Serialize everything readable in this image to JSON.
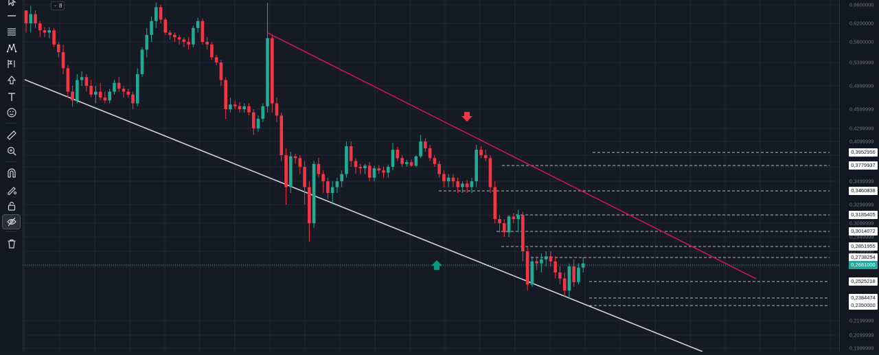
{
  "toolbar": {
    "tools": [
      {
        "name": "cursor-icon"
      },
      {
        "name": "trend-line-icon"
      },
      {
        "name": "fib-retracement-icon"
      },
      {
        "name": "pattern-icon"
      },
      {
        "name": "prediction-icon"
      },
      {
        "name": "shapes-icon"
      },
      {
        "name": "text-icon"
      },
      {
        "name": "emoji-icon"
      },
      {
        "name": "ruler-icon"
      },
      {
        "name": "zoom-in-icon"
      },
      {
        "name": "magnet-icon"
      },
      {
        "name": "stay-in-drawing-mode-icon"
      },
      {
        "name": "lock-icon"
      },
      {
        "name": "hide-drawings-icon"
      },
      {
        "name": "trash-icon"
      }
    ]
  },
  "interval": {
    "value": "8"
  },
  "colors": {
    "background": "#161a25",
    "grid": "#232734",
    "bull": "#22ab94",
    "bear": "#f23645",
    "channel_upper": "#c2185b",
    "channel_lower": "#d1d4dc",
    "level_line": "#b2b5be",
    "current_price": "#26a69a",
    "arrow_down": "#f23645",
    "arrow_up": "#089981"
  },
  "chart_data": {
    "type": "candlestick",
    "price_axis_ticks": [
      "0,6600000",
      "0,6200000",
      "0,5800000",
      "0,5399999",
      "0,4999999",
      "0,4599999",
      "0,4299999",
      "0,4099999",
      "0,3899999",
      "0,3699999",
      "0,3499999",
      "0,3299999",
      "0,3199999",
      "0,3099999",
      "0,2949999",
      "0,2799999",
      "0,2649999",
      "0,2199999",
      "0,2099999",
      "0,1999999"
    ],
    "levels": [
      {
        "label": "0,3952956",
        "price": 0.3953
      },
      {
        "label": "0,3779937",
        "price": 0.378
      },
      {
        "label": "0,3460838",
        "price": 0.3461
      },
      {
        "label": "0,3185405",
        "price": 0.3185
      },
      {
        "label": "0,3014072",
        "price": 0.3014
      },
      {
        "label": "0,2851955",
        "price": 0.2852
      },
      {
        "label": "0,2738254",
        "price": 0.2738
      },
      {
        "label": "0,2525218",
        "price": 0.2525
      },
      {
        "label": "0,2384474",
        "price": 0.2384
      },
      {
        "label": "0,2350000",
        "price": 0.235
      }
    ],
    "current_price": {
      "label": "0,2681000",
      "price": 0.2681
    },
    "candles": [
      [
        0.648,
        0.648,
        0.6,
        0.62
      ],
      [
        0.62,
        0.658,
        0.6,
        0.64
      ],
      [
        0.64,
        0.648,
        0.61,
        0.62
      ],
      [
        0.62,
        0.625,
        0.59,
        0.605
      ],
      [
        0.605,
        0.612,
        0.59,
        0.6
      ],
      [
        0.6,
        0.612,
        0.588,
        0.605
      ],
      [
        0.605,
        0.61,
        0.57,
        0.575
      ],
      [
        0.575,
        0.58,
        0.55,
        0.56
      ],
      [
        0.56,
        0.575,
        0.52,
        0.53
      ],
      [
        0.53,
        0.535,
        0.48,
        0.49
      ],
      [
        0.49,
        0.5,
        0.465,
        0.475
      ],
      [
        0.475,
        0.52,
        0.47,
        0.51
      ],
      [
        0.51,
        0.525,
        0.5,
        0.515
      ],
      [
        0.515,
        0.52,
        0.49,
        0.5
      ],
      [
        0.5,
        0.51,
        0.48,
        0.485
      ],
      [
        0.485,
        0.5,
        0.47,
        0.49
      ],
      [
        0.49,
        0.505,
        0.475,
        0.48
      ],
      [
        0.48,
        0.49,
        0.47,
        0.475
      ],
      [
        0.475,
        0.495,
        0.47,
        0.49
      ],
      [
        0.49,
        0.51,
        0.485,
        0.505
      ],
      [
        0.505,
        0.515,
        0.49,
        0.495
      ],
      [
        0.495,
        0.5,
        0.48,
        0.49
      ],
      [
        0.49,
        0.495,
        0.48,
        0.485
      ],
      [
        0.485,
        0.49,
        0.46,
        0.47
      ],
      [
        0.47,
        0.53,
        0.465,
        0.52
      ],
      [
        0.52,
        0.57,
        0.515,
        0.565
      ],
      [
        0.565,
        0.61,
        0.55,
        0.595
      ],
      [
        0.595,
        0.635,
        0.58,
        0.625
      ],
      [
        0.625,
        0.665,
        0.61,
        0.655
      ],
      [
        0.655,
        0.66,
        0.62,
        0.628
      ],
      [
        0.628,
        0.632,
        0.595,
        0.6
      ],
      [
        0.6,
        0.605,
        0.585,
        0.595
      ],
      [
        0.595,
        0.6,
        0.58,
        0.59
      ],
      [
        0.59,
        0.595,
        0.575,
        0.585
      ],
      [
        0.585,
        0.59,
        0.57,
        0.58
      ],
      [
        0.58,
        0.59,
        0.565,
        0.575
      ],
      [
        0.575,
        0.615,
        0.57,
        0.61
      ],
      [
        0.61,
        0.632,
        0.6,
        0.625
      ],
      [
        0.625,
        0.63,
        0.575,
        0.58
      ],
      [
        0.58,
        0.59,
        0.565,
        0.575
      ],
      [
        0.575,
        0.58,
        0.545,
        0.55
      ],
      [
        0.55,
        0.555,
        0.535,
        0.54
      ],
      [
        0.54,
        0.545,
        0.5,
        0.51
      ],
      [
        0.51,
        0.515,
        0.445,
        0.46
      ],
      [
        0.46,
        0.48,
        0.455,
        0.468
      ],
      [
        0.468,
        0.475,
        0.46,
        0.465
      ],
      [
        0.465,
        0.472,
        0.455,
        0.46
      ],
      [
        0.46,
        0.47,
        0.455,
        0.465
      ],
      [
        0.465,
        0.47,
        0.45,
        0.455
      ],
      [
        0.455,
        0.46,
        0.42,
        0.43
      ],
      [
        0.43,
        0.45,
        0.425,
        0.445
      ],
      [
        0.445,
        0.47,
        0.44,
        0.465
      ],
      [
        0.465,
        0.664,
        0.455,
        0.588
      ],
      [
        0.588,
        0.595,
        0.455,
        0.47
      ],
      [
        0.47,
        0.48,
        0.44,
        0.45
      ],
      [
        0.45,
        0.455,
        0.38,
        0.39
      ],
      [
        0.39,
        0.4,
        0.33,
        0.345
      ],
      [
        0.345,
        0.395,
        0.34,
        0.388
      ],
      [
        0.388,
        0.392,
        0.375,
        0.385
      ],
      [
        0.385,
        0.39,
        0.36,
        0.37
      ],
      [
        0.37,
        0.38,
        0.33,
        0.345
      ],
      [
        0.345,
        0.35,
        0.29,
        0.31
      ],
      [
        0.31,
        0.38,
        0.305,
        0.375
      ],
      [
        0.375,
        0.385,
        0.355,
        0.36
      ],
      [
        0.36,
        0.365,
        0.34,
        0.35
      ],
      [
        0.35,
        0.355,
        0.335,
        0.34
      ],
      [
        0.34,
        0.35,
        0.33,
        0.345
      ],
      [
        0.345,
        0.355,
        0.34,
        0.35
      ],
      [
        0.35,
        0.365,
        0.345,
        0.36
      ],
      [
        0.36,
        0.41,
        0.355,
        0.403
      ],
      [
        0.403,
        0.41,
        0.37,
        0.38
      ],
      [
        0.38,
        0.385,
        0.36,
        0.37
      ],
      [
        0.37,
        0.375,
        0.36,
        0.368
      ],
      [
        0.368,
        0.375,
        0.36,
        0.372
      ],
      [
        0.372,
        0.378,
        0.35,
        0.355
      ],
      [
        0.355,
        0.372,
        0.35,
        0.368
      ],
      [
        0.368,
        0.373,
        0.36,
        0.365
      ],
      [
        0.365,
        0.37,
        0.355,
        0.362
      ],
      [
        0.362,
        0.374,
        0.355,
        0.37
      ],
      [
        0.37,
        0.408,
        0.365,
        0.398
      ],
      [
        0.398,
        0.402,
        0.38,
        0.385
      ],
      [
        0.385,
        0.39,
        0.37,
        0.375
      ],
      [
        0.375,
        0.382,
        0.37,
        0.378
      ],
      [
        0.378,
        0.383,
        0.37,
        0.372
      ],
      [
        0.372,
        0.39,
        0.37,
        0.388
      ],
      [
        0.388,
        0.42,
        0.385,
        0.41
      ],
      [
        0.41,
        0.415,
        0.395,
        0.4
      ],
      [
        0.4,
        0.405,
        0.38,
        0.385
      ],
      [
        0.385,
        0.39,
        0.37,
        0.375
      ],
      [
        0.375,
        0.38,
        0.355,
        0.36
      ],
      [
        0.36,
        0.365,
        0.345,
        0.35
      ],
      [
        0.35,
        0.36,
        0.345,
        0.355
      ],
      [
        0.355,
        0.36,
        0.345,
        0.35
      ],
      [
        0.35,
        0.355,
        0.34,
        0.345
      ],
      [
        0.345,
        0.35,
        0.34,
        0.348
      ],
      [
        0.348,
        0.352,
        0.34,
        0.345
      ],
      [
        0.345,
        0.355,
        0.34,
        0.35
      ],
      [
        0.35,
        0.405,
        0.345,
        0.398
      ],
      [
        0.398,
        0.403,
        0.385,
        0.39
      ],
      [
        0.39,
        0.398,
        0.38,
        0.385
      ],
      [
        0.385,
        0.39,
        0.34,
        0.345
      ],
      [
        0.345,
        0.35,
        0.31,
        0.315
      ],
      [
        0.315,
        0.32,
        0.3,
        0.31
      ],
      [
        0.31,
        0.315,
        0.295,
        0.3
      ],
      [
        0.3,
        0.32,
        0.295,
        0.318
      ],
      [
        0.318,
        0.322,
        0.31,
        0.315
      ],
      [
        0.315,
        0.325,
        0.3,
        0.32
      ],
      [
        0.32,
        0.323,
        0.27,
        0.28
      ],
      [
        0.28,
        0.285,
        0.245,
        0.25
      ],
      [
        0.25,
        0.275,
        0.248,
        0.27
      ],
      [
        0.27,
        0.275,
        0.262,
        0.268
      ],
      [
        0.268,
        0.278,
        0.26,
        0.272
      ],
      [
        0.272,
        0.28,
        0.265,
        0.275
      ],
      [
        0.275,
        0.28,
        0.265,
        0.27
      ],
      [
        0.27,
        0.275,
        0.255,
        0.26
      ],
      [
        0.26,
        0.265,
        0.25,
        0.255
      ],
      [
        0.255,
        0.26,
        0.24,
        0.245
      ],
      [
        0.245,
        0.268,
        0.238,
        0.265
      ],
      [
        0.265,
        0.272,
        0.248,
        0.252
      ],
      [
        0.252,
        0.268,
        0.25,
        0.264
      ],
      [
        0.264,
        0.274,
        0.26,
        0.268
      ]
    ]
  }
}
